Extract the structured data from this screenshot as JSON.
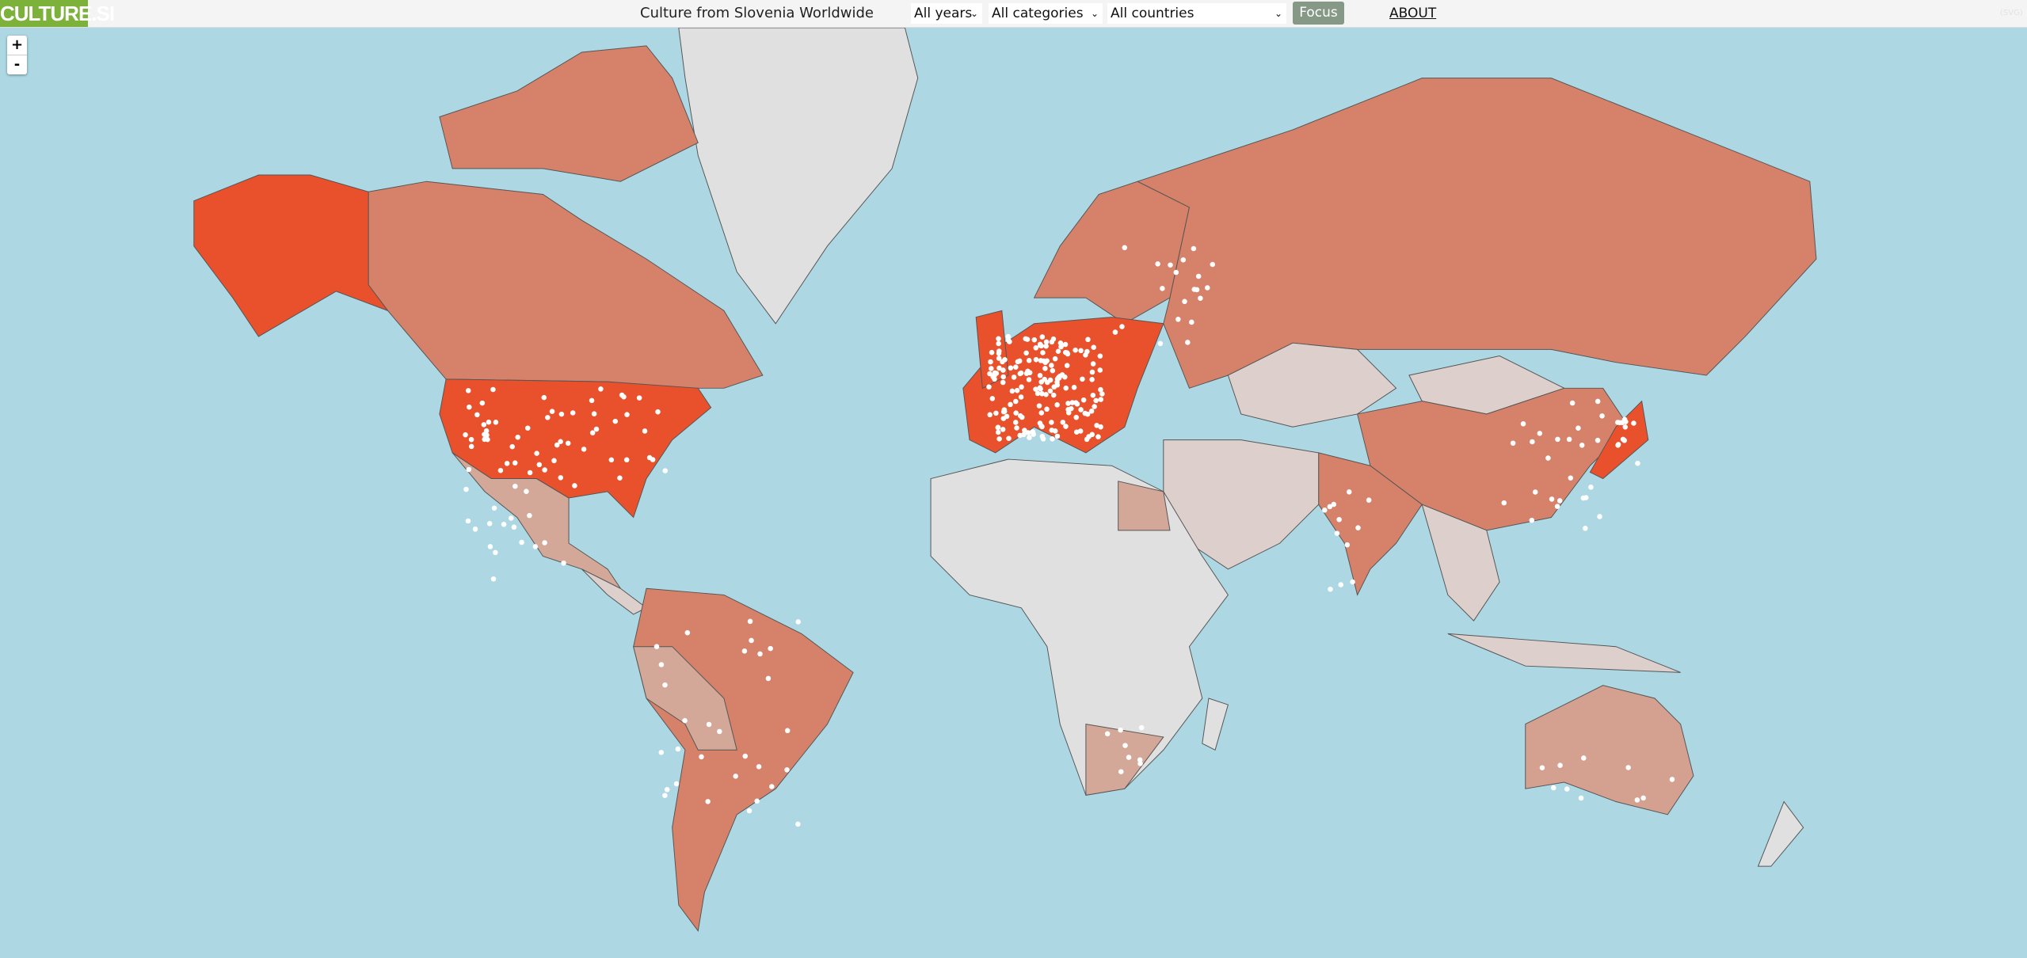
{
  "header": {
    "logo": "CULTURE.SI",
    "title": "Culture from Slovenia Worldwide",
    "filters": {
      "years": "All years",
      "categories": "All categories",
      "countries": "All countries"
    },
    "focus_label": "Focus",
    "about_label": "ABOUT",
    "svg_label": "(SVG)"
  },
  "map": {
    "zoom_in": "+",
    "zoom_out": "-",
    "colors": {
      "ocean": "#add8e3",
      "high": "#e8512b",
      "medium": "#d6826a",
      "low": "#d4a898",
      "lowest": "#dccfcc",
      "none": "#e0e0e0",
      "marker": "#ffffff"
    }
  }
}
